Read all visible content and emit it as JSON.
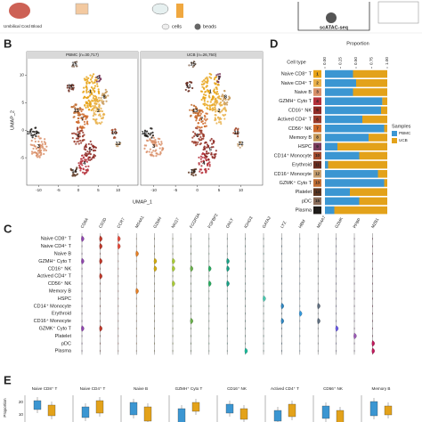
{
  "header": {
    "source": "Umbilical Cord Blood",
    "cells": "cells",
    "beads": "beads",
    "method": "scATAC-seq"
  },
  "panel_b": {
    "label": "B",
    "titles": [
      "PBMC (n=30,717)",
      "UCB (n=26,750)"
    ],
    "x_label": "UMAP_1",
    "y_label": "UMAP_2",
    "xlim": [
      -13,
      15
    ],
    "ylim": [
      -10,
      13
    ],
    "xticks": [
      -10,
      -5,
      0,
      5,
      10
    ],
    "yticks": [
      -5,
      0,
      5,
      10
    ]
  },
  "chart_data": {
    "type": "bar",
    "label": "D",
    "title": "Proportion",
    "y_label": "Cell type",
    "orientation": "horizontal",
    "stacked": true,
    "categories": [
      "Naive CD8⁺ T",
      "Naive CD4⁺ T",
      "Naive B",
      "GZMH⁺ Cyto T",
      "CD16⁺ NK",
      "Actived CD4⁺ T",
      "CD56⁺ NK",
      "Memory B",
      "HSPC",
      "CD14⁺ Monocyte",
      "Erythroid",
      "CD16⁺ Monocyte",
      "GZMK⁺ Cyto T",
      "Platelet",
      "pDC",
      "Plasma"
    ],
    "ids": [
      "1",
      "2",
      "3",
      "4",
      "5",
      "6",
      "7",
      "8",
      "9",
      "10",
      "11",
      "12",
      "13",
      "14",
      "15",
      "16"
    ],
    "id_colors": [
      "#e8a317",
      "#e9b04a",
      "#d98f68",
      "#b5303a",
      "#8e2a25",
      "#9b3b2a",
      "#cf6a2a",
      "#c89a5a",
      "#7a3b5c",
      "#a34a2c",
      "#6b2c1e",
      "#c8a070",
      "#c26e33",
      "#5c3520",
      "#8a6d5a",
      "#1e1b18"
    ],
    "series": [
      {
        "name": "PBMC",
        "color": "#3b96d2",
        "values": [
          0.45,
          0.5,
          0.45,
          0.92,
          0.9,
          0.6,
          0.95,
          0.7,
          0.2,
          0.55,
          0.05,
          0.85,
          0.95,
          0.4,
          0.55,
          0.15
        ]
      },
      {
        "name": "UCB",
        "color": "#e3a21a",
        "values": [
          0.55,
          0.5,
          0.55,
          0.08,
          0.1,
          0.4,
          0.05,
          0.3,
          0.8,
          0.45,
          0.95,
          0.15,
          0.05,
          0.6,
          0.45,
          0.85
        ]
      }
    ],
    "xlim": [
      0,
      1
    ],
    "xticks": [
      {
        "value": 0,
        "label": "0.00"
      },
      {
        "value": 0.25,
        "label": "0.25"
      },
      {
        "value": 0.5,
        "label": "0.50"
      },
      {
        "value": 0.75,
        "label": "0.75"
      },
      {
        "value": 1,
        "label": "1.00"
      }
    ],
    "legend_title": "Samples"
  },
  "panel_c": {
    "label": "C",
    "genes": [
      "CD8A",
      "CD3D",
      "CCR7",
      "MS4A1",
      "GZMH",
      "NKG7",
      "FCGR3A",
      "FGFBP2",
      "GNLY",
      "IGHG3",
      "GATA2",
      "LYZ",
      "HBM",
      "MS4A7",
      "GZMK",
      "PPBP",
      "MZB1"
    ],
    "rows": [
      "Naive CD8⁺ T",
      "Naive CD4⁺ T",
      "Naive B",
      "GZMH⁺ Cyto T",
      "CD16⁺ NK",
      "Actived CD4⁺ T",
      "CD56⁺ NK",
      "Memory B",
      "HSPC",
      "CD14⁺ Monocyte",
      "Erythroid",
      "CD16⁺ Monocyte",
      "GZMK⁺ Cyto T",
      "Platelet",
      "pDC",
      "Plasma"
    ]
  },
  "panel_e": {
    "label": "E",
    "y_label": "Proportion",
    "yticks": [
      "20",
      "10"
    ],
    "titles": [
      "Naive CD8⁺ T",
      "Naive CD4⁺ T",
      "Naive B",
      "GZMH⁺ Cyto T",
      "CD16⁺ NK",
      "Actived CD4⁺ T",
      "CD56⁺ NK",
      "Memory B"
    ]
  }
}
